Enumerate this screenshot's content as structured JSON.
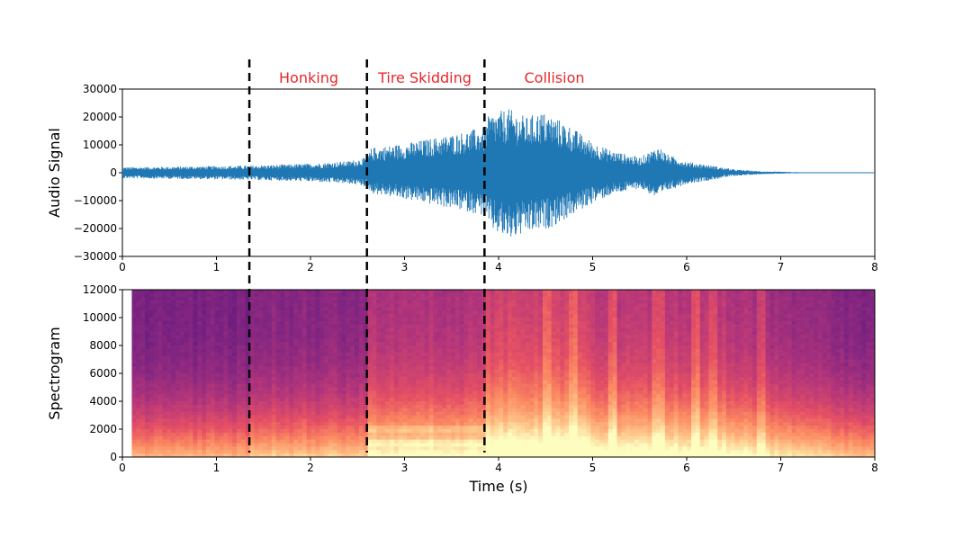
{
  "colors": {
    "waveform": "#1f77b4",
    "event_label": "#e8262a",
    "markers": "#000000",
    "spectro_low": "#2a1659",
    "spectro_high": "#fcf5b2"
  },
  "chart_data": [
    {
      "type": "line",
      "name": "audio-signal-panel",
      "ylabel": "Audio Signal",
      "xlabel": "",
      "xlim": [
        0,
        8
      ],
      "ylim": [
        -30000,
        30000
      ],
      "x_ticks": [
        "0",
        "1",
        "2",
        "3",
        "4",
        "5",
        "6",
        "7",
        "8"
      ],
      "y_ticks": [
        "30000",
        "20000",
        "10000",
        "0",
        "−10000",
        "−20000",
        "−30000"
      ],
      "y_tick_values": [
        30000,
        20000,
        10000,
        0,
        -10000,
        -20000,
        -30000
      ],
      "envelope": {
        "t": [
          0,
          0.5,
          1.0,
          1.35,
          1.6,
          2.0,
          2.4,
          2.6,
          2.65,
          3.0,
          3.3,
          3.6,
          3.85,
          3.9,
          4.1,
          4.3,
          4.45,
          4.6,
          4.75,
          5.0,
          5.2,
          5.5,
          5.7,
          5.8,
          6.0,
          6.2,
          6.5,
          6.8,
          7.2,
          7.6,
          8.0
        ],
        "upper": [
          2000,
          2200,
          2400,
          2600,
          2800,
          3300,
          4200,
          5500,
          9000,
          10500,
          12500,
          14500,
          16500,
          21000,
          23000,
          20000,
          22000,
          20000,
          17000,
          11000,
          8000,
          5500,
          9500,
          6500,
          4000,
          3000,
          1200,
          500,
          200,
          120,
          80
        ],
        "lower": [
          -2000,
          -2200,
          -2400,
          -2600,
          -2800,
          -3200,
          -4000,
          -5000,
          -7500,
          -9500,
          -11500,
          -13500,
          -15500,
          -20000,
          -24500,
          -22000,
          -21000,
          -19000,
          -16000,
          -11000,
          -8000,
          -5500,
          -9500,
          -6500,
          -4000,
          -3000,
          -1200,
          -500,
          -200,
          -120,
          -80
        ]
      }
    },
    {
      "type": "heatmap",
      "name": "spectrogram-panel",
      "ylabel": "Spectrogram",
      "xlabel": "Time (s)",
      "xlim": [
        0,
        8
      ],
      "ylim": [
        0,
        12000
      ],
      "x_ticks": [
        "0",
        "1",
        "2",
        "3",
        "4",
        "5",
        "6",
        "7",
        "8"
      ],
      "y_ticks": [
        "12000",
        "10000",
        "8000",
        "6000",
        "4000",
        "2000",
        "0"
      ],
      "y_tick_values": [
        12000,
        10000,
        8000,
        6000,
        4000,
        2000,
        0
      ],
      "colormap": "magma",
      "data_start_time": 0.1
    }
  ],
  "events": [
    {
      "label": "Honking",
      "start": 1.35,
      "end": 2.6
    },
    {
      "label": "Tire Skidding",
      "start": 2.6,
      "end": 3.85
    },
    {
      "label": "Collision",
      "start": 3.85,
      "end": 8.0
    }
  ],
  "event_boundaries": [
    1.35,
    2.6,
    3.85
  ]
}
